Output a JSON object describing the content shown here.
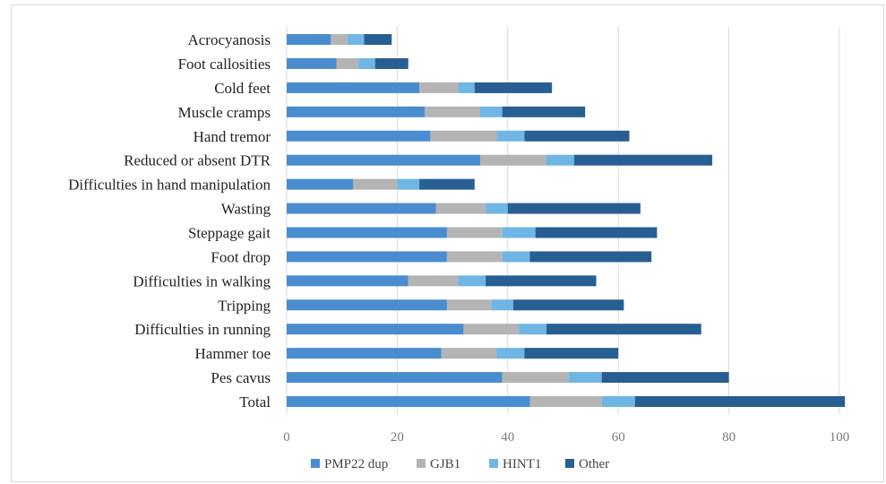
{
  "chart_data": {
    "type": "bar",
    "orientation": "horizontal",
    "stacked": true,
    "categories": [
      "Total",
      "Pes cavus",
      "Hammer toe",
      "Difficulties in running",
      "Tripping",
      "Difficulties in walking",
      "Foot drop",
      "Steppage gait",
      "Wasting",
      "Difficulties in hand manipulation",
      "Reduced or absent DTR",
      "Hand tremor",
      "Muscle cramps",
      "Cold feet",
      "Foot callosities",
      "Acrocyanosis"
    ],
    "series": [
      {
        "name": "PMP22 dup",
        "color": "#4a8cd0",
        "values": [
          44,
          39,
          28,
          32,
          29,
          22,
          29,
          29,
          27,
          12,
          35,
          26,
          25,
          24,
          9,
          8
        ]
      },
      {
        "name": "GJB1",
        "color": "#b4b4b4",
        "values": [
          13,
          12,
          10,
          10,
          8,
          9,
          10,
          10,
          9,
          8,
          12,
          12,
          10,
          7,
          4,
          3
        ]
      },
      {
        "name": "HINT1",
        "color": "#6fb6e4",
        "values": [
          6,
          6,
          5,
          5,
          4,
          5,
          5,
          6,
          4,
          4,
          5,
          5,
          4,
          3,
          3,
          3
        ]
      },
      {
        "name": "Other",
        "color": "#285f93",
        "values": [
          38,
          23,
          17,
          28,
          20,
          20,
          22,
          22,
          24,
          10,
          25,
          19,
          15,
          14,
          6,
          5
        ]
      }
    ],
    "xlim": [
      0,
      100
    ],
    "xticks": [
      "0",
      "20",
      "40",
      "60",
      "80",
      "100"
    ],
    "grid": true,
    "legend": "bottom",
    "title": "",
    "xlabel": "",
    "ylabel": ""
  }
}
